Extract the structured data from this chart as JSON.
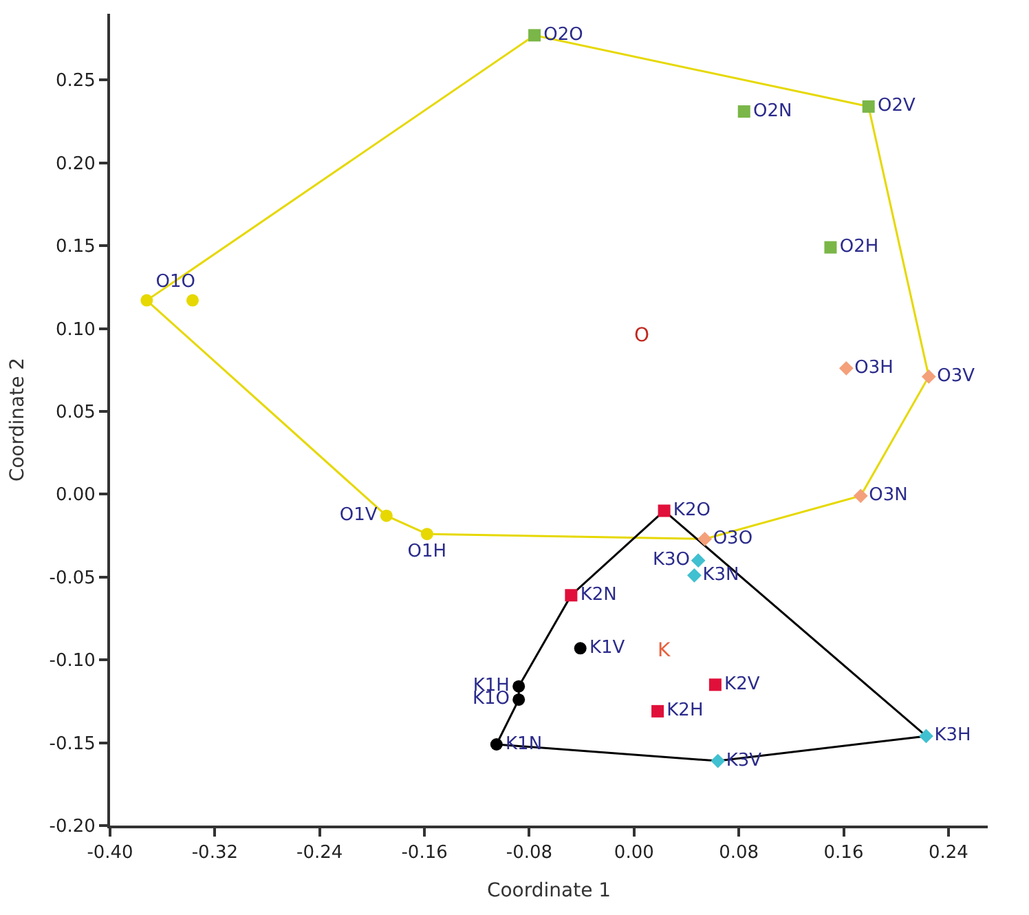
{
  "chart_data": {
    "type": "scatter",
    "xlabel": "Coordinate 1",
    "ylabel": "Coordinate 2",
    "xlim": [
      -0.4,
      0.27
    ],
    "ylim": [
      -0.2,
      0.29
    ],
    "xticks": [
      {
        "value": -0.4,
        "label": "-0.40"
      },
      {
        "value": -0.32,
        "label": "-0.32"
      },
      {
        "value": -0.24,
        "label": "-0.24"
      },
      {
        "value": -0.16,
        "label": "-0.16"
      },
      {
        "value": -0.08,
        "label": "-0.08"
      },
      {
        "value": 0,
        "label": "0.00"
      },
      {
        "value": 0.08,
        "label": "0.08"
      },
      {
        "value": 0.16,
        "label": "0.16"
      },
      {
        "value": 0.24,
        "label": "0.24"
      }
    ],
    "yticks": [
      {
        "value": -0.2,
        "label": "-0.20"
      },
      {
        "value": -0.15,
        "label": "-0.15"
      },
      {
        "value": -0.1,
        "label": "-0.10"
      },
      {
        "value": -0.05,
        "label": "-0.05"
      },
      {
        "value": 0,
        "label": "0.00"
      },
      {
        "value": 0.05,
        "label": "0.05"
      },
      {
        "value": 0.1,
        "label": "0.10"
      },
      {
        "value": 0.15,
        "label": "0.15"
      },
      {
        "value": 0.2,
        "label": "0.20"
      },
      {
        "value": 0.25,
        "label": "0.25"
      }
    ],
    "series": [
      {
        "type": "line",
        "color": "#e6d800",
        "marker": "none",
        "x": [
          -0.372,
          -0.076,
          0.179,
          0.225
        ],
        "values": [
          0.117,
          0.277,
          0.234,
          0.071
        ]
      },
      {
        "type": "line",
        "color": "#e6d800",
        "marker": "none",
        "x": [
          -0.372,
          -0.189,
          -0.158,
          0.054,
          0.173,
          0.225
        ],
        "values": [
          0.117,
          -0.013,
          -0.024,
          -0.027,
          -0.001,
          0.071
        ]
      },
      {
        "type": "line",
        "color": "#000000",
        "marker": "none",
        "x": [
          -0.105,
          -0.088,
          -0.088,
          -0.048,
          0.023,
          0.223
        ],
        "values": [
          -0.151,
          -0.124,
          -0.116,
          -0.061,
          -0.01,
          -0.146
        ]
      },
      {
        "type": "line",
        "color": "#000000",
        "marker": "none",
        "x": [
          -0.105,
          0.064,
          0.223
        ],
        "values": [
          -0.151,
          -0.161,
          -0.146
        ]
      },
      {
        "color": "#e6d800",
        "marker": "circle",
        "x": [
          -0.372,
          -0.337,
          -0.189,
          -0.158
        ],
        "values": [
          0.117,
          0.117,
          -0.013,
          -0.024
        ],
        "value_labels": [
          "O1O",
          null,
          "O1V",
          "O1H"
        ]
      },
      {
        "color": "#7ab648",
        "marker": "square",
        "x": [
          -0.076,
          0.084,
          0.179,
          0.15
        ],
        "values": [
          0.277,
          0.231,
          0.234,
          0.149
        ],
        "value_labels": [
          "O2O",
          "O2N",
          "O2V",
          "O2H"
        ]
      },
      {
        "color": "#f4a07a",
        "marker": "diamond",
        "x": [
          0.162,
          0.225,
          0.173,
          0.054
        ],
        "values": [
          0.076,
          0.071,
          -0.001,
          -0.027
        ],
        "value_labels": [
          "O3H",
          "O3V",
          "O3N",
          "O3O"
        ]
      },
      {
        "color": "#000000",
        "marker": "circle",
        "x": [
          -0.041,
          -0.088,
          -0.088,
          -0.105
        ],
        "values": [
          -0.093,
          -0.116,
          -0.124,
          -0.151
        ],
        "value_labels": [
          "K1V",
          "K1H",
          "K1O",
          "K1N"
        ]
      },
      {
        "color": "#e0103a",
        "marker": "square",
        "x": [
          0.023,
          -0.048,
          0.018,
          0.062
        ],
        "values": [
          -0.01,
          -0.061,
          -0.131,
          -0.115
        ],
        "value_labels": [
          "K2O",
          "K2N",
          "K2H",
          "K2V"
        ]
      },
      {
        "color": "#40c0d0",
        "marker": "diamond",
        "x": [
          0.049,
          0.046,
          0.064,
          0.223
        ],
        "values": [
          -0.04,
          -0.049,
          -0.161,
          -0.146
        ],
        "value_labels": [
          "K3O",
          "K3N",
          "K3V",
          "K3H"
        ]
      }
    ],
    "annotations": [
      "O",
      "K"
    ]
  }
}
